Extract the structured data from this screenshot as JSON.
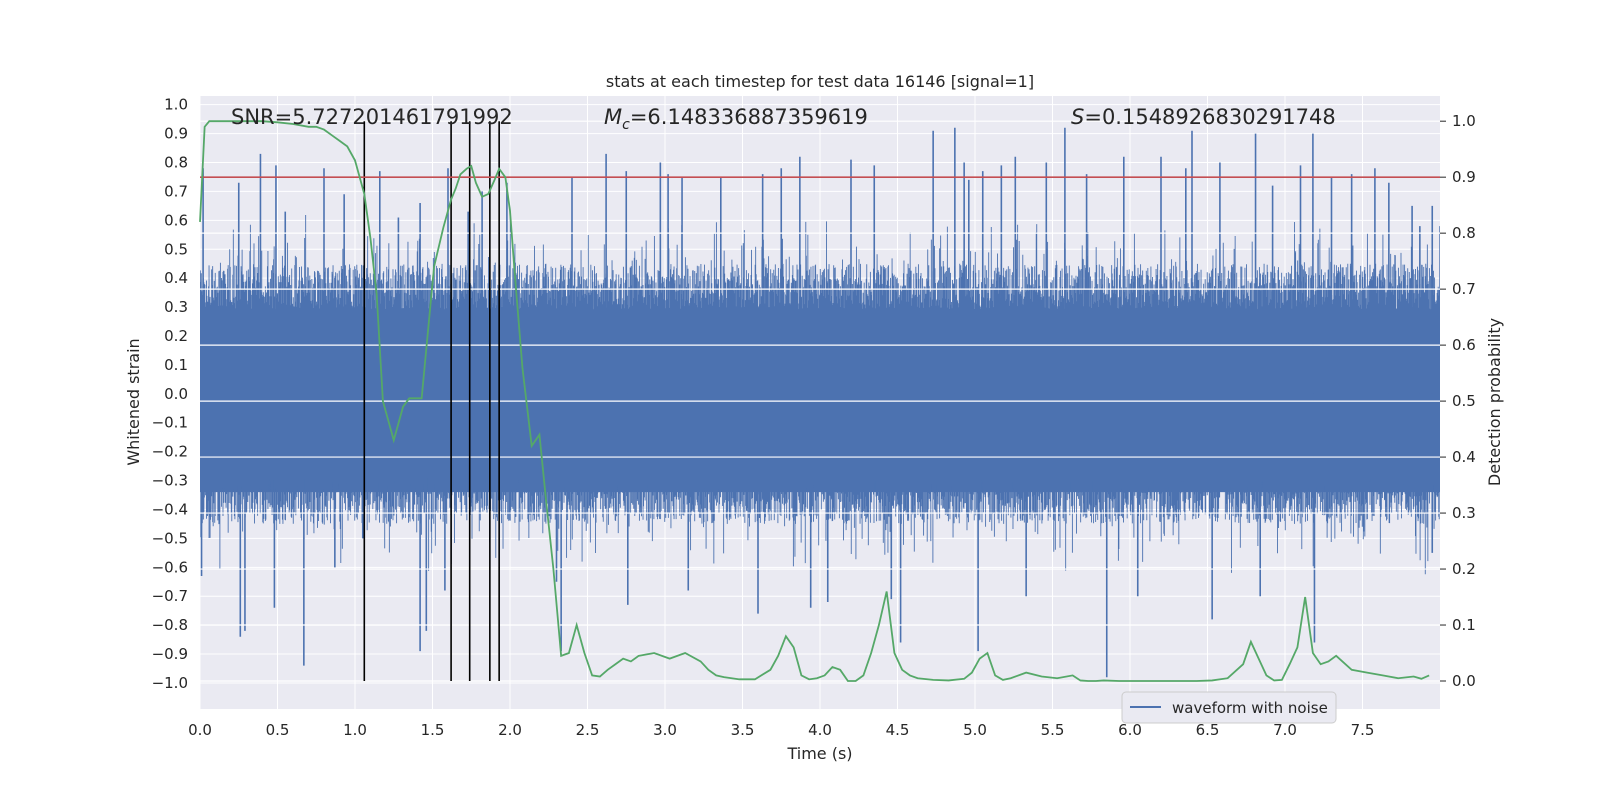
{
  "chart_data": {
    "type": "line",
    "title": "stats at each timestep for test data 16146 [signal=1]",
    "xlabel": "Time (s)",
    "ylabel_left": "Whitened strain",
    "ylabel_right": "Detection probability",
    "xlim": [
      0.0,
      8.0
    ],
    "ylim_left": [
      -1.09,
      1.03
    ],
    "ylim_right": [
      -0.05,
      1.045
    ],
    "xticks": [
      "0.0",
      "0.5",
      "1.0",
      "1.5",
      "2.0",
      "2.5",
      "3.0",
      "3.5",
      "4.0",
      "4.5",
      "5.0",
      "5.5",
      "6.0",
      "6.5",
      "7.0",
      "7.5"
    ],
    "yticks_left": [
      "1.0",
      "0.9",
      "0.8",
      "0.7",
      "0.6",
      "0.5",
      "0.4",
      "0.3",
      "0.2",
      "0.1",
      "0.0",
      "−0.1",
      "−0.2",
      "−0.3",
      "−0.4",
      "−0.5",
      "−0.6",
      "−0.7",
      "−0.8",
      "−0.9",
      "−1.0"
    ],
    "yticks_right": [
      "1.0",
      "0.9",
      "0.8",
      "0.7",
      "0.6",
      "0.5",
      "0.4",
      "0.3",
      "0.2",
      "0.1",
      "0.0"
    ],
    "grid": true,
    "annotations": {
      "snr": "SNR=5.727201461791992",
      "mc_symbol": "M",
      "mc_sub": "c",
      "mc_value": "=6.148336887359619",
      "s_symbol": "S",
      "s_value": "=0.1548926830291748"
    },
    "threshold": {
      "axis": "right",
      "value": 0.9,
      "color": "#c44e52"
    },
    "vertical_lines": {
      "x": [
        1.06,
        1.62,
        1.74,
        1.87,
        1.93
      ],
      "color": "#000000"
    },
    "series": [
      {
        "name": "waveform with noise",
        "axis": "left",
        "color": "#4c72b0",
        "style": "noise",
        "approx_amplitude": 0.45,
        "spikes": [
          {
            "t": 0.02,
            "v": 0.78
          },
          {
            "t": 0.01,
            "v": -0.63
          },
          {
            "t": 0.25,
            "v": 0.73
          },
          {
            "t": 0.26,
            "v": -0.84
          },
          {
            "t": 0.29,
            "v": -0.82
          },
          {
            "t": 0.39,
            "v": 0.83
          },
          {
            "t": 0.49,
            "v": 0.79
          },
          {
            "t": 0.48,
            "v": -0.74
          },
          {
            "t": 0.67,
            "v": -0.94
          },
          {
            "t": 0.55,
            "v": 0.63
          },
          {
            "t": 0.8,
            "v": 0.78
          },
          {
            "t": 0.87,
            "v": -0.6
          },
          {
            "t": 0.93,
            "v": 0.69
          },
          {
            "t": 1.05,
            "v": -0.5
          },
          {
            "t": 1.16,
            "v": 0.77
          },
          {
            "t": 1.28,
            "v": 0.61
          },
          {
            "t": 1.42,
            "v": 0.66
          },
          {
            "t": 1.42,
            "v": -0.89
          },
          {
            "t": 1.46,
            "v": -0.82
          },
          {
            "t": 1.6,
            "v": 0.78
          },
          {
            "t": 1.58,
            "v": -0.68
          },
          {
            "t": 1.73,
            "v": 0.63
          },
          {
            "t": 1.82,
            "v": 0.7
          },
          {
            "t": 1.98,
            "v": 0.73
          },
          {
            "t": 2.3,
            "v": -0.65
          },
          {
            "t": 2.33,
            "v": -0.89
          },
          {
            "t": 2.4,
            "v": 0.75
          },
          {
            "t": 2.62,
            "v": 0.83
          },
          {
            "t": 2.75,
            "v": 0.77
          },
          {
            "t": 2.76,
            "v": -0.73
          },
          {
            "t": 2.97,
            "v": 0.8
          },
          {
            "t": 3.02,
            "v": 0.76
          },
          {
            "t": 3.11,
            "v": 0.75
          },
          {
            "t": 3.15,
            "v": -0.68
          },
          {
            "t": 3.36,
            "v": 0.75
          },
          {
            "t": 3.6,
            "v": -0.76
          },
          {
            "t": 3.63,
            "v": 0.76
          },
          {
            "t": 3.75,
            "v": 0.78
          },
          {
            "t": 3.87,
            "v": 0.82
          },
          {
            "t": 3.94,
            "v": -0.74
          },
          {
            "t": 4.05,
            "v": -0.72
          },
          {
            "t": 4.2,
            "v": 0.81
          },
          {
            "t": 4.35,
            "v": 0.79
          },
          {
            "t": 4.46,
            "v": -0.71
          },
          {
            "t": 4.52,
            "v": -0.86
          },
          {
            "t": 4.73,
            "v": 0.91
          },
          {
            "t": 4.87,
            "v": 0.92
          },
          {
            "t": 4.93,
            "v": 0.8
          },
          {
            "t": 4.96,
            "v": 0.74
          },
          {
            "t": 5.02,
            "v": -0.89
          },
          {
            "t": 5.05,
            "v": 0.77
          },
          {
            "t": 5.17,
            "v": 0.79
          },
          {
            "t": 5.26,
            "v": 0.82
          },
          {
            "t": 5.33,
            "v": -0.7
          },
          {
            "t": 5.46,
            "v": 0.8
          },
          {
            "t": 5.58,
            "v": 0.92
          },
          {
            "t": 5.72,
            "v": 0.76
          },
          {
            "t": 5.85,
            "v": -0.98
          },
          {
            "t": 5.96,
            "v": 0.82
          },
          {
            "t": 6.05,
            "v": -0.7
          },
          {
            "t": 6.2,
            "v": 0.82
          },
          {
            "t": 6.36,
            "v": 0.78
          },
          {
            "t": 6.4,
            "v": 0.91
          },
          {
            "t": 6.53,
            "v": -0.78
          },
          {
            "t": 6.58,
            "v": 0.8
          },
          {
            "t": 6.81,
            "v": 0.9
          },
          {
            "t": 6.84,
            "v": -0.7
          },
          {
            "t": 6.92,
            "v": 0.72
          },
          {
            "t": 7.1,
            "v": 0.79
          },
          {
            "t": 7.18,
            "v": 0.9
          },
          {
            "t": 7.19,
            "v": -0.86
          },
          {
            "t": 7.3,
            "v": 0.75
          },
          {
            "t": 7.43,
            "v": 0.76
          },
          {
            "t": 7.58,
            "v": 0.78
          },
          {
            "t": 7.67,
            "v": 0.73
          },
          {
            "t": 7.82,
            "v": 0.65
          },
          {
            "t": 7.87,
            "v": 0.58
          },
          {
            "t": 7.95,
            "v": 0.65
          },
          {
            "t": 7.95,
            "v": -0.55
          }
        ]
      },
      {
        "name": "Detection probability",
        "axis": "right",
        "color": "#55a868",
        "style": "line",
        "x": [
          0.0,
          0.03,
          0.06,
          0.12,
          0.2,
          0.3,
          0.4,
          0.5,
          0.6,
          0.7,
          0.75,
          0.8,
          0.85,
          0.9,
          0.95,
          1.0,
          1.03,
          1.06,
          1.1,
          1.14,
          1.18,
          1.25,
          1.31,
          1.35,
          1.43,
          1.51,
          1.57,
          1.62,
          1.65,
          1.68,
          1.72,
          1.75,
          1.78,
          1.82,
          1.86,
          1.9,
          1.93,
          1.97,
          2.0,
          2.03,
          2.08,
          2.14,
          2.19,
          2.23,
          2.28,
          2.33,
          2.38,
          2.43,
          2.48,
          2.53,
          2.58,
          2.63,
          2.68,
          2.73,
          2.78,
          2.83,
          2.93,
          3.03,
          3.13,
          3.23,
          3.28,
          3.33,
          3.38,
          3.48,
          3.58,
          3.68,
          3.73,
          3.78,
          3.83,
          3.88,
          3.93,
          3.98,
          4.03,
          4.08,
          4.13,
          4.18,
          4.23,
          4.28,
          4.33,
          4.38,
          4.43,
          4.48,
          4.53,
          4.58,
          4.63,
          4.73,
          4.83,
          4.93,
          4.98,
          5.03,
          5.08,
          5.13,
          5.18,
          5.23,
          5.33,
          5.43,
          5.53,
          5.63,
          5.68,
          5.73,
          5.78,
          5.83,
          5.93,
          6.03,
          6.13,
          6.23,
          6.33,
          6.43,
          6.53,
          6.63,
          6.73,
          6.78,
          6.83,
          6.88,
          6.93,
          6.98,
          7.03,
          7.08,
          7.13,
          7.18,
          7.23,
          7.28,
          7.33,
          7.43,
          7.53,
          7.63,
          7.73,
          7.83,
          7.88,
          7.93
        ],
        "y": [
          0.82,
          0.99,
          1.0,
          1.0,
          1.0,
          1.0,
          1.0,
          0.998,
          0.995,
          0.99,
          0.99,
          0.985,
          0.975,
          0.965,
          0.955,
          0.93,
          0.9,
          0.87,
          0.79,
          0.69,
          0.5,
          0.43,
          0.49,
          0.505,
          0.505,
          0.74,
          0.81,
          0.86,
          0.88,
          0.905,
          0.915,
          0.92,
          0.89,
          0.865,
          0.87,
          0.895,
          0.915,
          0.9,
          0.84,
          0.73,
          0.56,
          0.42,
          0.44,
          0.33,
          0.2,
          0.045,
          0.05,
          0.1,
          0.05,
          0.01,
          0.008,
          0.02,
          0.03,
          0.04,
          0.035,
          0.045,
          0.05,
          0.04,
          0.05,
          0.035,
          0.02,
          0.01,
          0.007,
          0.003,
          0.003,
          0.02,
          0.045,
          0.08,
          0.06,
          0.01,
          0.003,
          0.005,
          0.01,
          0.025,
          0.02,
          0.0,
          0.0,
          0.01,
          0.05,
          0.1,
          0.16,
          0.05,
          0.02,
          0.01,
          0.005,
          0.002,
          0.001,
          0.004,
          0.015,
          0.04,
          0.05,
          0.01,
          0.002,
          0.005,
          0.015,
          0.008,
          0.005,
          0.01,
          0.001,
          0.0,
          0.0,
          0.001,
          0.0,
          0.0,
          0.0,
          0.0,
          0.0,
          0.0,
          0.001,
          0.005,
          0.03,
          0.07,
          0.04,
          0.01,
          0.001,
          0.002,
          0.03,
          0.06,
          0.15,
          0.05,
          0.03,
          0.035,
          0.045,
          0.02,
          0.015,
          0.01,
          0.005,
          0.008,
          0.004,
          0.01
        ]
      }
    ],
    "legend": {
      "location": "lower-right",
      "entries": [
        "waveform with noise"
      ]
    }
  }
}
